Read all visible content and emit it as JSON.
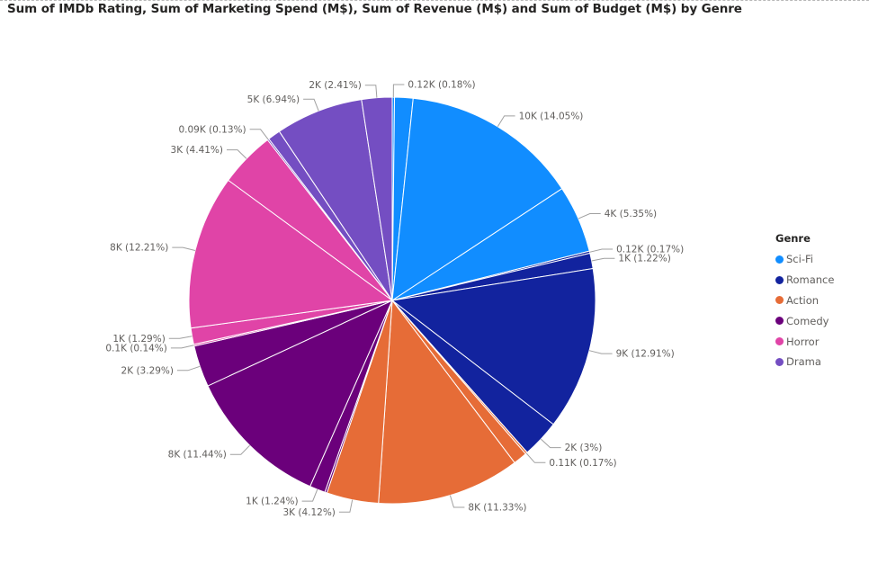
{
  "chart_data": {
    "type": "pie",
    "title": "Sum of IMDb Rating, Sum of Marketing Spend (M$), Sum of Revenue (M$) and Sum of Budget (M$) by Genre",
    "legend_title": "Genre",
    "legend_position": "right",
    "genres": [
      {
        "name": "Sci-Fi",
        "color": "#118DFF"
      },
      {
        "name": "Romance",
        "color": "#12239E"
      },
      {
        "name": "Action",
        "color": "#E66C37"
      },
      {
        "name": "Comedy",
        "color": "#6B007B"
      },
      {
        "name": "Horror",
        "color": "#E044A7"
      },
      {
        "name": "Drama",
        "color": "#744EC2"
      }
    ],
    "slices": [
      {
        "genre": "Sci-Fi",
        "percent": 0.18,
        "label": "0.12K (0.18%)"
      },
      {
        "genre": "Sci-Fi",
        "percent": 1.46,
        "label": ""
      },
      {
        "genre": "Sci-Fi",
        "percent": 14.05,
        "label": "10K (14.05%)"
      },
      {
        "genre": "Sci-Fi",
        "percent": 5.35,
        "label": "4K (5.35%)"
      },
      {
        "genre": "Romance",
        "percent": 0.17,
        "label": "0.12K (0.17%)"
      },
      {
        "genre": "Romance",
        "percent": 1.22,
        "label": "1K (1.22%)"
      },
      {
        "genre": "Romance",
        "percent": 12.91,
        "label": "9K (12.91%)"
      },
      {
        "genre": "Romance",
        "percent": 3.0,
        "label": "2K (3%)"
      },
      {
        "genre": "Action",
        "percent": 0.17,
        "label": "0.11K (0.17%)"
      },
      {
        "genre": "Action",
        "percent": 1.1,
        "label": ""
      },
      {
        "genre": "Action",
        "percent": 11.33,
        "label": "8K (11.33%)"
      },
      {
        "genre": "Action",
        "percent": 4.12,
        "label": "3K (4.12%)"
      },
      {
        "genre": "Comedy",
        "percent": 0.17,
        "label": ""
      },
      {
        "genre": "Comedy",
        "percent": 1.24,
        "label": "1K (1.24%)"
      },
      {
        "genre": "Comedy",
        "percent": 11.44,
        "label": "8K (11.44%)"
      },
      {
        "genre": "Comedy",
        "percent": 3.29,
        "label": "2K (3.29%)"
      },
      {
        "genre": "Horror",
        "percent": 0.14,
        "label": "0.1K (0.14%)"
      },
      {
        "genre": "Horror",
        "percent": 1.29,
        "label": "1K (1.29%)"
      },
      {
        "genre": "Horror",
        "percent": 12.21,
        "label": "8K (12.21%)"
      },
      {
        "genre": "Horror",
        "percent": 4.41,
        "label": "3K (4.41%)"
      },
      {
        "genre": "Drama",
        "percent": 0.13,
        "label": "0.09K (0.13%)"
      },
      {
        "genre": "Drama",
        "percent": 1.0,
        "label": ""
      },
      {
        "genre": "Drama",
        "percent": 6.94,
        "label": "5K (6.94%)"
      },
      {
        "genre": "Drama",
        "percent": 2.41,
        "label": "2K (2.41%)"
      }
    ]
  }
}
